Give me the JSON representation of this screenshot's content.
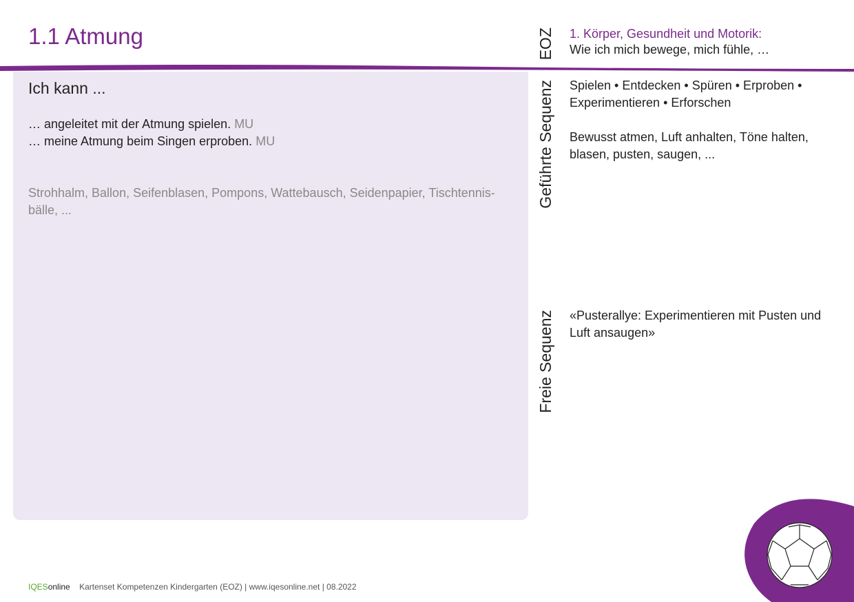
{
  "header": {
    "title": "1.1 Atmung",
    "area_code": "EOZ",
    "area_title": "1. Körper, Gesundheit und Motorik:",
    "area_subtitle": "Wie ich mich bewege, mich fühle, …"
  },
  "left_panel": {
    "heading": "Ich kann ...",
    "items": [
      {
        "text": "… angeleitet mit der Atmung spielen.",
        "tag": "MU"
      },
      {
        "text": "… meine Atmung beim Singen erproben.",
        "tag": "MU"
      }
    ],
    "materials": "Strohhalm, Ballon, Seifenblasen, Pompons, Wattebausch, Seidenpapier, Tischtennis-bälle, ..."
  },
  "guided": {
    "label": "Geführte Sequenz",
    "activities": "Spielen • Entdecken • Spüren • Erproben • Experimentieren • Erforschen",
    "description": "Bewusst atmen, Luft anhalten, Töne halten, blasen, pusten, saugen, ..."
  },
  "free": {
    "label": "Freie Sequenz",
    "text": "«Pusterallye: Experimentieren mit Pusten und Luft ansaugen»"
  },
  "footer": {
    "brand_a": "IQES",
    "brand_b": "online",
    "text": "Kartenset Kompetenzen Kindergarten (EOZ) | www.iqesonline.net | 08.2022"
  }
}
